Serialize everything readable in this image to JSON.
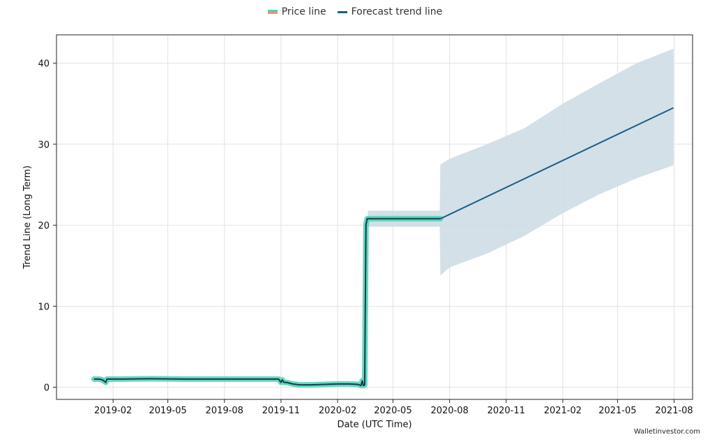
{
  "legend": {
    "price_label": "Price line",
    "forecast_label": "Forecast trend line"
  },
  "watermark": "Walletinvestor.com",
  "colors": {
    "price": "#4fd1b5",
    "price_alt": "#e8957a",
    "actual_trend": "#0e3e4a",
    "forecast": "#1c5d86",
    "band": "#cfdde5"
  },
  "chart_data": {
    "type": "line",
    "title": "",
    "xlabel": "Date (UTC Time)",
    "ylabel": "Trend Line (Long Term)",
    "ylim": [
      -1.5,
      43.5
    ],
    "xlim": [
      "2018-11-01",
      "2021-08-31"
    ],
    "grid": true,
    "legend_position": "top-center",
    "x_ticks": [
      "2019-02",
      "2019-05",
      "2019-08",
      "2019-11",
      "2020-02",
      "2020-05",
      "2020-08",
      "2020-11",
      "2021-02",
      "2021-05",
      "2021-08"
    ],
    "y_ticks": [
      0,
      10,
      20,
      30,
      40
    ],
    "series": [
      {
        "name": "Price line",
        "x": [
          "2019-01-01",
          "2019-01-10",
          "2019-01-15",
          "2019-01-20",
          "2019-01-22",
          "2019-02-15",
          "2019-04-01",
          "2019-06-01",
          "2019-08-01",
          "2019-10-01",
          "2019-10-28",
          "2019-11-01",
          "2019-11-03",
          "2019-11-06",
          "2019-11-10",
          "2019-11-20",
          "2019-12-01",
          "2019-12-20",
          "2020-01-10",
          "2020-02-01",
          "2020-02-20",
          "2020-03-05",
          "2020-03-10",
          "2020-03-12",
          "2020-03-14",
          "2020-03-16",
          "2020-03-18",
          "2020-03-20",
          "2020-03-22",
          "2020-03-25",
          "2020-04-01",
          "2020-05-01",
          "2020-06-01",
          "2020-07-17"
        ],
        "values": [
          1.0,
          1.0,
          0.9,
          0.6,
          1.0,
          1.0,
          1.05,
          1.0,
          1.0,
          1.0,
          1.0,
          0.6,
          0.9,
          0.6,
          0.6,
          0.4,
          0.3,
          0.3,
          0.35,
          0.4,
          0.4,
          0.35,
          0.2,
          0.8,
          0.2,
          0.3,
          20.0,
          20.8,
          20.8,
          20.8,
          20.8,
          20.8,
          20.8,
          20.8
        ]
      },
      {
        "name": "Forecast trend line",
        "x": [
          "2020-07-17",
          "2021-07-31"
        ],
        "values": [
          20.8,
          34.5
        ]
      }
    ],
    "confidence_band": {
      "x": [
        "2020-03-21",
        "2020-07-16",
        "2020-07-17",
        "2020-08-01",
        "2020-10-01",
        "2020-12-01",
        "2021-02-01",
        "2021-04-01",
        "2021-06-01",
        "2021-07-31"
      ],
      "upper": [
        21.8,
        21.8,
        27.5,
        28.2,
        30.0,
        32.0,
        35.0,
        37.5,
        40.0,
        41.8
      ],
      "lower": [
        19.8,
        19.8,
        13.8,
        14.8,
        16.5,
        18.7,
        21.5,
        23.8,
        25.8,
        27.4
      ]
    }
  }
}
